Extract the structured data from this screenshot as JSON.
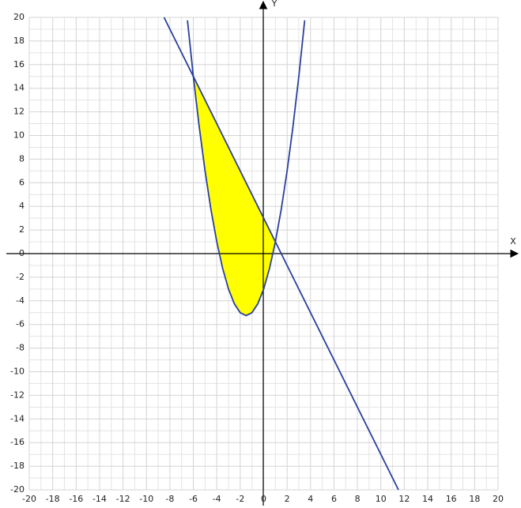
{
  "chart_data": {
    "type": "function",
    "x_label": "X",
    "y_label": "Y",
    "xlim": [
      -20,
      20
    ],
    "ylim": [
      -20,
      20
    ],
    "xticks": [
      -20,
      -18,
      -16,
      -14,
      -12,
      -10,
      -8,
      -6,
      -4,
      -2,
      0,
      2,
      4,
      6,
      8,
      10,
      12,
      14,
      16,
      18,
      20
    ],
    "yticks": [
      -20,
      -18,
      -16,
      -14,
      -12,
      -10,
      -8,
      -6,
      -4,
      -2,
      0,
      2,
      4,
      6,
      8,
      10,
      12,
      14,
      16,
      18,
      20
    ],
    "grid": true,
    "series": [
      {
        "color": "#2b3f9e",
        "x": [
          -8.5,
          11.5
        ],
        "values": [
          20,
          -20
        ]
      },
      {
        "color": "#2b3f9e",
        "fill_color": "#ffff00",
        "fill_between": [
          -6,
          1
        ],
        "x": [
          -6.5,
          -6,
          -5.5,
          -5,
          -4.5,
          -4,
          -3.5,
          -3,
          -2.5,
          -2,
          -1.5,
          -1,
          -0.5,
          0,
          0.5,
          1,
          1.5,
          2,
          2.5,
          3,
          3.5
        ],
        "values": [
          19.75,
          15,
          10.75,
          7,
          3.75,
          1,
          -1.25,
          -3,
          -4.25,
          -5,
          -5.25,
          -5,
          -4.25,
          -3,
          -1.25,
          1,
          3.75,
          7,
          10.75,
          15,
          19.75
        ]
      }
    ]
  }
}
